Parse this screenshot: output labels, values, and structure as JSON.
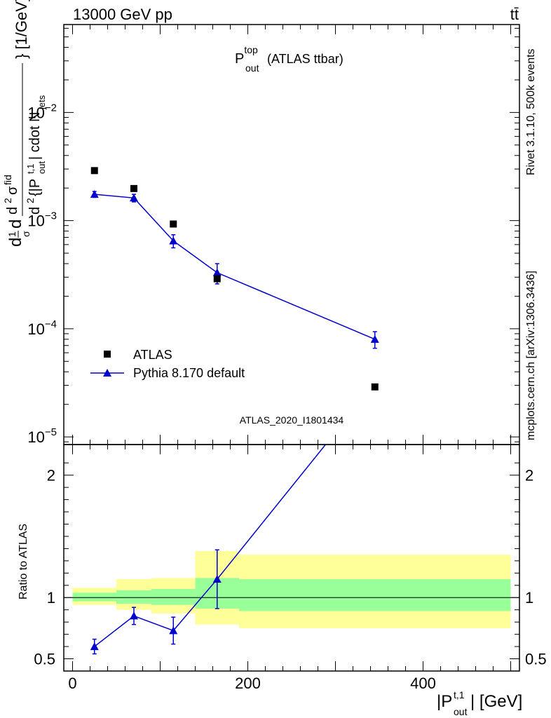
{
  "header": {
    "left": "13000 GeV pp",
    "right": "tt̄"
  },
  "side_labels": {
    "top": "Rivet 3.1.10,  500k events",
    "bottom": "mcplots.cern.ch [arXiv:1306.3436]"
  },
  "chart_data": [
    {
      "type": "scatter",
      "title": {
        "main": "P",
        "sup": "top",
        "sub": "out",
        "rest": " (ATLAS ttbar)"
      },
      "analysis_id": "ATLAS_2020_I1801434",
      "ylabel": "d𝜎/d{|P^{t,1}_{out}| cdot N_{jets}} [1/GeV]",
      "yscale": "log",
      "ylim": [
        8.5e-06,
        0.065
      ],
      "xlim": [
        -10,
        510
      ],
      "yticks": [
        {
          "value": 1e-05,
          "base": "10",
          "exp": "−5"
        },
        {
          "value": 0.0001,
          "base": "10",
          "exp": "−4"
        },
        {
          "value": 0.001,
          "base": "10",
          "exp": "−3"
        },
        {
          "value": 0.01,
          "base": "10",
          "exp": "−2"
        }
      ],
      "legend": {
        "position": "bottom-left"
      },
      "series": [
        {
          "name": "ATLAS",
          "marker": "square",
          "color": "#000000",
          "x": [
            25,
            70,
            115,
            165,
            345
          ],
          "y": [
            0.0029,
            0.00198,
            0.00093,
            0.00029,
            2.9e-05
          ]
        },
        {
          "name": "Pythia 8.170 default",
          "marker": "triangle",
          "color": "#0000cc",
          "x": [
            25,
            70,
            115,
            165,
            345
          ],
          "y": [
            0.00175,
            0.00162,
            0.00065,
            0.00033,
            8e-05
          ],
          "yerr": [
            0.00011,
            0.00013,
            9e-05,
            7e-05,
            1.4e-05
          ]
        }
      ]
    },
    {
      "type": "line",
      "ylabel": "Ratio to ATLAS",
      "xlabel": "|P^{t,1}_{out}| [GeV]",
      "xlim": [
        -10,
        510
      ],
      "ylim": [
        0.4,
        2.25
      ],
      "xticks": [
        "0",
        "200",
        "400"
      ],
      "yticks": [
        "0.5",
        "1",
        "2"
      ],
      "bins": [
        {
          "x0": 0,
          "x1": 50,
          "green": [
            0.97,
            1.04
          ],
          "yellow": [
            0.94,
            1.08
          ]
        },
        {
          "x0": 50,
          "x1": 90,
          "green": [
            0.95,
            1.06
          ],
          "yellow": [
            0.9,
            1.15
          ]
        },
        {
          "x0": 90,
          "x1": 140,
          "green": [
            0.94,
            1.07
          ],
          "yellow": [
            0.87,
            1.16
          ]
        },
        {
          "x0": 140,
          "x1": 190,
          "green": [
            0.91,
            1.16
          ],
          "yellow": [
            0.78,
            1.38
          ]
        },
        {
          "x0": 190,
          "x1": 500,
          "green": [
            0.89,
            1.15
          ],
          "yellow": [
            0.75,
            1.35
          ]
        }
      ],
      "series": [
        {
          "name": "Pythia 8.170 default",
          "color": "#0000cc",
          "x": [
            25,
            70,
            115,
            165,
            345
          ],
          "y": [
            0.6,
            0.85,
            0.73,
            1.15,
            2.75
          ],
          "yerr": [
            0.06,
            0.07,
            0.11,
            0.24,
            0
          ]
        }
      ]
    }
  ]
}
